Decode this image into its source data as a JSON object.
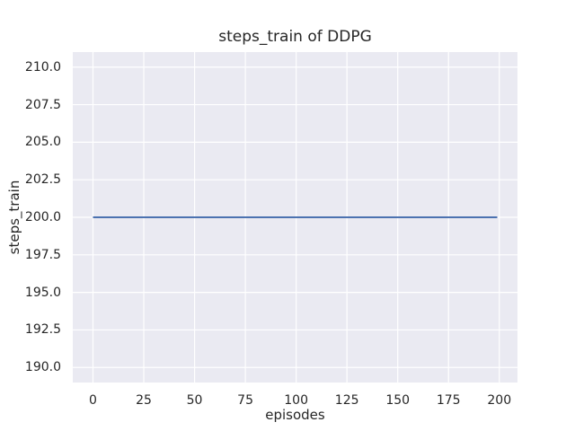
{
  "figure": {
    "background": "#ffffff"
  },
  "chart_data": {
    "type": "line",
    "title": "steps_train of DDPG",
    "xlabel": "episodes",
    "ylabel": "steps_train",
    "xlim": [
      -9.95,
      208.95
    ],
    "ylim": [
      189,
      211
    ],
    "xticks": {
      "values": [
        0,
        25,
        50,
        75,
        100,
        125,
        150,
        175,
        200
      ],
      "labels": [
        "0",
        "25",
        "50",
        "75",
        "100",
        "125",
        "150",
        "175",
        "200"
      ]
    },
    "yticks": {
      "values": [
        190.0,
        192.5,
        195.0,
        197.5,
        200.0,
        202.5,
        205.0,
        207.5,
        210.0
      ],
      "labels": [
        "190.0",
        "192.5",
        "195.0",
        "197.5",
        "200.0",
        "202.5",
        "205.0",
        "207.5",
        "210.0"
      ]
    },
    "grid": true,
    "legend": "none",
    "series": [
      {
        "name": "steps_train",
        "color": "#4c72b0",
        "x": [
          0,
          199
        ],
        "y": [
          200,
          200
        ]
      }
    ],
    "styles": {
      "axes_background": "#eaeaf2",
      "grid_color": "#ffffff",
      "text_color": "#262626",
      "line_width": 2
    }
  }
}
